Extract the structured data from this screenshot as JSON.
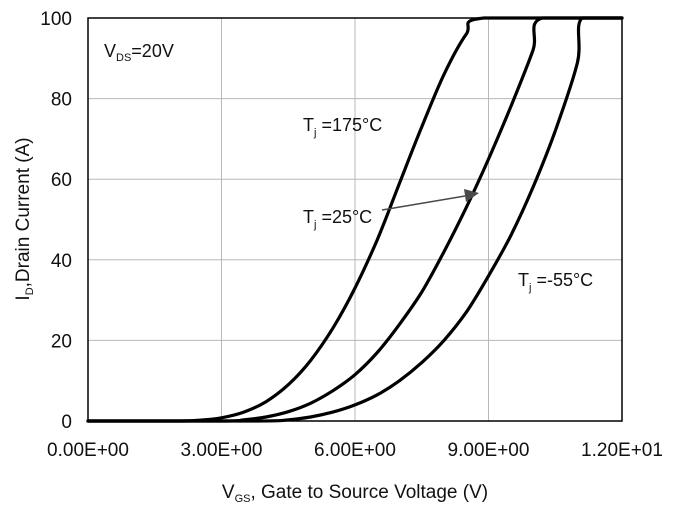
{
  "chart_data": {
    "type": "line",
    "xlabel": {
      "main": "V",
      "sub": "GS",
      "rest": ", Gate to Source Voltage  (V)"
    },
    "ylabel": {
      "main": "I",
      "sub": "D",
      "rest": ",Drain Current (A)"
    },
    "xlim": [
      0,
      12
    ],
    "ylim": [
      0,
      100
    ],
    "x_ticks": [
      {
        "value": 0,
        "label": "0.00E+00"
      },
      {
        "value": 3,
        "label": "3.00E+00"
      },
      {
        "value": 6,
        "label": "6.00E+00"
      },
      {
        "value": 9,
        "label": "9.00E+00"
      },
      {
        "value": 12,
        "label": "1.20E+01"
      }
    ],
    "y_ticks": [
      {
        "value": 0,
        "label": "0"
      },
      {
        "value": 20,
        "label": "20"
      },
      {
        "value": 40,
        "label": "40"
      },
      {
        "value": 60,
        "label": "60"
      },
      {
        "value": 80,
        "label": "80"
      },
      {
        "value": 100,
        "label": "100"
      }
    ],
    "grid": true,
    "condition": {
      "main": "V",
      "sub": "DS",
      "rest": "=20V"
    },
    "series": [
      {
        "name": "Tj=175°C",
        "label": {
          "main": "T",
          "sub": "j",
          "rest": " =175°C"
        },
        "x": [
          0,
          2.0,
          2.5,
          3.0,
          3.5,
          4.0,
          4.5,
          5.0,
          5.5,
          6.0,
          6.5,
          7.0,
          7.5,
          8.0,
          8.5,
          8.9,
          12
        ],
        "y": [
          0,
          0,
          0.2,
          0.8,
          2.2,
          4.8,
          9,
          15,
          23,
          33,
          45,
          59,
          73,
          86,
          96,
          100,
          100
        ]
      },
      {
        "name": "Tj=25°C",
        "label": {
          "main": "T",
          "sub": "j",
          "rest": " =25°C"
        },
        "x": [
          0,
          3.0,
          3.5,
          4.0,
          4.5,
          5.0,
          5.5,
          6.0,
          6.5,
          7.0,
          7.5,
          8.0,
          8.5,
          9.0,
          9.5,
          10.0,
          10.2,
          12
        ],
        "y": [
          0,
          0,
          0.3,
          1,
          2.3,
          4.4,
          7.5,
          11.5,
          17,
          24,
          32,
          42,
          53,
          65,
          78,
          92,
          100,
          100
        ]
      },
      {
        "name": "Tj=-55°C",
        "label": {
          "main": "T",
          "sub": "j",
          "rest": " =-55°C"
        },
        "x": [
          0,
          3.8,
          4.5,
          5.0,
          5.5,
          6.0,
          6.5,
          7.0,
          7.5,
          8.0,
          8.5,
          9.0,
          9.5,
          10.0,
          10.5,
          11.0,
          11.1,
          12
        ],
        "y": [
          0,
          0,
          0.3,
          1,
          2.2,
          4,
          6.5,
          10,
          14.5,
          20,
          27,
          36,
          46,
          58,
          72,
          89,
          100,
          100
        ]
      }
    ]
  }
}
